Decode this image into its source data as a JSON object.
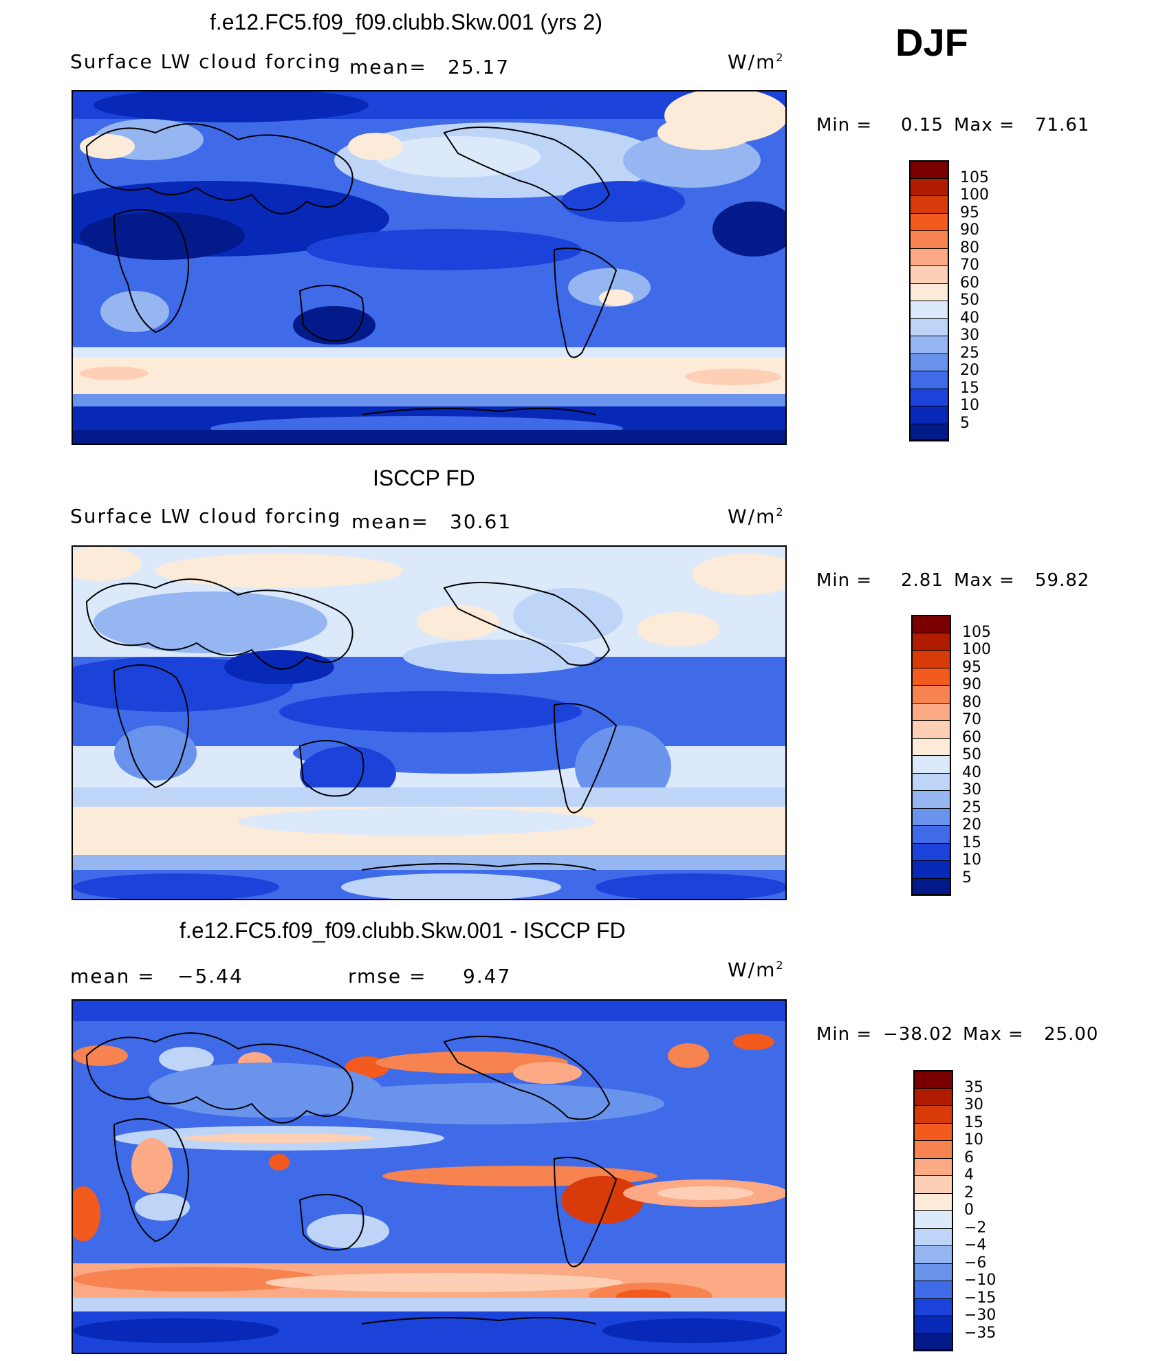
{
  "season": "DJF",
  "units": "W/m",
  "units_sup": "2",
  "panels": [
    {
      "title": "f.e12.FC5.f09_f09.clubb.Skw.001 (yrs 2)",
      "variable": "Surface LW cloud forcing",
      "mean_label": "mean=",
      "mean_value": "25.17",
      "min_label": "Min =",
      "min_value": "0.15",
      "max_label": "Max =",
      "max_value": "71.61",
      "levels": [
        "105",
        "100",
        "95",
        "90",
        "80",
        "70",
        "60",
        "50",
        "40",
        "30",
        "25",
        "20",
        "15",
        "10",
        "5"
      ]
    },
    {
      "title": "ISCCP FD",
      "variable": "Surface LW cloud forcing",
      "mean_label": "mean=",
      "mean_value": "30.61",
      "min_label": "Min =",
      "min_value": "2.81",
      "max_label": "Max =",
      "max_value": "59.82",
      "levels": [
        "105",
        "100",
        "95",
        "90",
        "80",
        "70",
        "60",
        "50",
        "40",
        "30",
        "25",
        "20",
        "15",
        "10",
        "5"
      ]
    },
    {
      "title": "f.e12.FC5.f09_f09.clubb.Skw.001 - ISCCP FD",
      "mean_label": "mean =",
      "mean_value": "−5.44",
      "rmse_label": "rmse =",
      "rmse_value": "9.47",
      "min_label": "Min =",
      "min_value": "−38.02",
      "max_label": "Max =",
      "max_value": "25.00",
      "levels": [
        "35",
        "30",
        "15",
        "10",
        "6",
        "4",
        "2",
        "0",
        "−2",
        "−4",
        "−6",
        "−10",
        "−15",
        "−30",
        "−35"
      ]
    }
  ],
  "colors": {
    "abs": [
      "#7a0000",
      "#b01c00",
      "#d93a0a",
      "#f25a1e",
      "#f78450",
      "#fbaa85",
      "#fdd0b5",
      "#fdebd9",
      "#dbe9fb",
      "#bed5f7",
      "#95b6f1",
      "#6a93ec",
      "#3f6ae8",
      "#1b43da",
      "#0828b8",
      "#021a8a"
    ],
    "diff": [
      "#7a0000",
      "#b01c00",
      "#d93a0a",
      "#f25a1e",
      "#f78450",
      "#fbaa85",
      "#fdd0b5",
      "#fdebd9",
      "#dbe9fb",
      "#bed5f7",
      "#95b6f1",
      "#6a93ec",
      "#3f6ae8",
      "#1b43da",
      "#0828b8",
      "#021a8a"
    ]
  }
}
